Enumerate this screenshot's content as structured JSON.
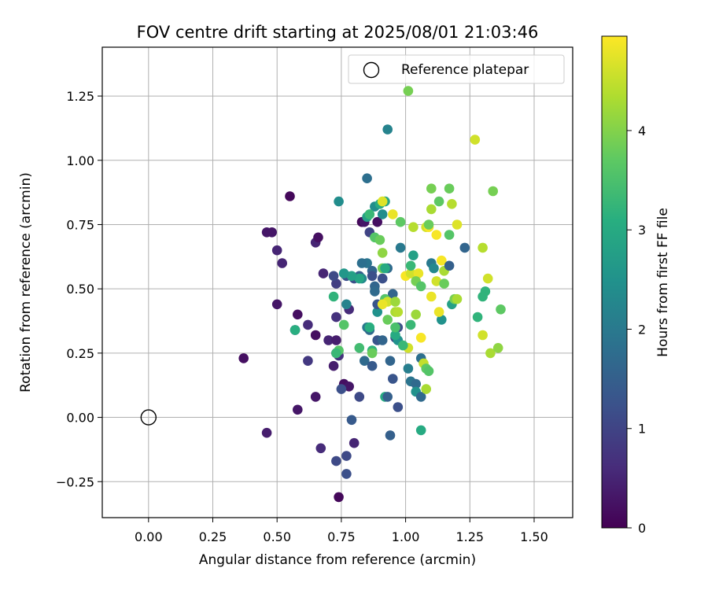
{
  "chart_data": {
    "type": "scatter",
    "title": "FOV centre drift starting at 2025/08/01 21:03:46",
    "xlabel": "Angular distance from reference (arcmin)",
    "ylabel": "Rotation from reference (arcmin)",
    "xlim": [
      -0.18,
      1.65
    ],
    "ylim": [
      -0.39,
      1.44
    ],
    "xticks": [
      0.0,
      0.25,
      0.5,
      0.75,
      1.0,
      1.25,
      1.5
    ],
    "xtick_labels": [
      "0.00",
      "0.25",
      "0.50",
      "0.75",
      "1.00",
      "1.25",
      "1.50"
    ],
    "yticks": [
      -0.25,
      0.0,
      0.25,
      0.5,
      0.75,
      1.0,
      1.25
    ],
    "ytick_labels": [
      "−0.25",
      "0.00",
      "0.25",
      "0.50",
      "0.75",
      "1.00",
      "1.25"
    ],
    "grid": true,
    "legend": {
      "placement": "top-right",
      "entries": [
        "Reference platepar"
      ]
    },
    "colormap": "viridis",
    "colorbar": {
      "label": "Hours from first FF file",
      "range": [
        0,
        4.95
      ],
      "ticks": [
        0,
        1,
        2,
        3,
        4
      ],
      "tick_labels": [
        "0",
        "1",
        "2",
        "3",
        "4"
      ]
    },
    "reference_point": {
      "x": 0.0,
      "y": 0.0
    },
    "points": [
      [
        0.55,
        0.86,
        0.1
      ],
      [
        0.46,
        0.72,
        0.3
      ],
      [
        0.48,
        0.72,
        0.3
      ],
      [
        0.65,
        0.68,
        0.5
      ],
      [
        0.66,
        0.7,
        0.2
      ],
      [
        0.5,
        0.65,
        0.5
      ],
      [
        0.52,
        0.6,
        0.5
      ],
      [
        0.37,
        0.23,
        0.2
      ],
      [
        0.46,
        -0.06,
        0.4
      ],
      [
        0.5,
        0.44,
        0.3
      ],
      [
        0.57,
        0.34,
        0.7
      ],
      [
        0.58,
        0.4,
        0.2
      ],
      [
        0.62,
        0.36,
        0.6
      ],
      [
        0.65,
        0.32,
        0.2
      ],
      [
        0.58,
        0.03,
        0.3
      ],
      [
        0.65,
        0.08,
        0.3
      ],
      [
        0.62,
        0.22,
        0.8
      ],
      [
        0.67,
        -0.12,
        0.6
      ],
      [
        0.68,
        0.56,
        0.5
      ],
      [
        0.7,
        0.3,
        0.5
      ],
      [
        0.73,
        0.3,
        0.4
      ],
      [
        0.73,
        0.25,
        0.6
      ],
      [
        0.74,
        0.24,
        0.7
      ],
      [
        0.72,
        0.2,
        0.4
      ],
      [
        0.76,
        0.13,
        0.2
      ],
      [
        0.78,
        0.12,
        0.3
      ],
      [
        0.75,
        0.11,
        1.2
      ],
      [
        0.82,
        0.08,
        1.1
      ],
      [
        0.73,
        -0.17,
        1.1
      ],
      [
        0.77,
        -0.15,
        1.1
      ],
      [
        0.77,
        -0.22,
        1.2
      ],
      [
        0.74,
        -0.31,
        0.1
      ],
      [
        0.79,
        -0.01,
        1.4
      ],
      [
        0.8,
        -0.1,
        0.5
      ],
      [
        0.78,
        0.42,
        0.6
      ],
      [
        0.73,
        0.39,
        0.7
      ],
      [
        0.73,
        0.52,
        0.9
      ],
      [
        0.72,
        0.55,
        1.1
      ],
      [
        0.77,
        0.55,
        1.2
      ],
      [
        0.8,
        0.54,
        1.2
      ],
      [
        0.82,
        0.55,
        1.5
      ],
      [
        0.83,
        0.76,
        0.1
      ],
      [
        0.84,
        0.76,
        0.3
      ],
      [
        0.86,
        0.72,
        1.0
      ],
      [
        0.89,
        0.76,
        0.2
      ],
      [
        0.85,
        0.93,
        1.8
      ],
      [
        0.93,
        1.12,
        2.2
      ],
      [
        0.88,
        0.82,
        2.4
      ],
      [
        0.85,
        0.6,
        1.9
      ],
      [
        0.87,
        0.57,
        1.6
      ],
      [
        0.85,
        0.35,
        2.0
      ],
      [
        0.86,
        0.34,
        1.7
      ],
      [
        0.84,
        0.22,
        1.7
      ],
      [
        0.87,
        0.2,
        1.4
      ],
      [
        0.89,
        0.3,
        1.3
      ],
      [
        0.91,
        0.3,
        1.6
      ],
      [
        0.92,
        0.08,
        3.0
      ],
      [
        0.93,
        0.08,
        1.5
      ],
      [
        0.94,
        -0.07,
        1.5
      ],
      [
        0.95,
        0.15,
        1.3
      ],
      [
        0.97,
        0.04,
        1.2
      ],
      [
        0.94,
        0.22,
        1.6
      ],
      [
        0.96,
        0.31,
        1.1
      ],
      [
        0.97,
        0.35,
        1.2
      ],
      [
        0.92,
        0.46,
        1.4
      ],
      [
        0.95,
        0.48,
        1.6
      ],
      [
        0.93,
        0.58,
        1.7
      ],
      [
        0.91,
        0.54,
        1.2
      ],
      [
        0.88,
        0.51,
        1.6
      ],
      [
        0.87,
        0.55,
        1.2
      ],
      [
        0.88,
        0.49,
        1.7
      ],
      [
        0.89,
        0.41,
        2.5
      ],
      [
        0.89,
        0.44,
        1.3
      ],
      [
        0.83,
        0.6,
        1.8
      ],
      [
        0.83,
        0.54,
        2.3
      ],
      [
        0.82,
        0.54,
        2.9
      ],
      [
        0.79,
        0.55,
        2.8
      ],
      [
        0.76,
        0.56,
        2.6
      ],
      [
        0.74,
        0.84,
        2.4
      ],
      [
        0.77,
        0.44,
        2.2
      ],
      [
        0.76,
        0.36,
        3.6
      ],
      [
        0.72,
        0.47,
        3.2
      ],
      [
        0.74,
        0.26,
        3.6
      ],
      [
        0.73,
        0.25,
        3.3
      ],
      [
        0.57,
        0.34,
        3.1
      ],
      [
        0.82,
        0.27,
        3.4
      ],
      [
        0.86,
        0.35,
        3.1
      ],
      [
        0.87,
        0.26,
        3.2
      ],
      [
        0.87,
        0.25,
        3.8
      ],
      [
        0.88,
        0.7,
        3.6
      ],
      [
        0.9,
        0.69,
        3.8
      ],
      [
        0.91,
        0.64,
        4.1
      ],
      [
        0.91,
        0.58,
        3.9
      ],
      [
        0.92,
        0.58,
        3.0
      ],
      [
        0.92,
        0.46,
        3.6
      ],
      [
        0.93,
        0.45,
        4.6
      ],
      [
        0.91,
        0.44,
        4.8
      ],
      [
        0.93,
        0.38,
        3.8
      ],
      [
        0.96,
        0.41,
        4.3
      ],
      [
        0.96,
        0.45,
        4.2
      ],
      [
        0.97,
        0.3,
        2.5
      ],
      [
        0.96,
        0.32,
        3.0
      ],
      [
        0.96,
        0.35,
        3.5
      ],
      [
        0.97,
        0.41,
        4.4
      ],
      [
        0.85,
        0.78,
        2.8
      ],
      [
        0.86,
        0.79,
        3.3
      ],
      [
        0.9,
        0.83,
        3.0
      ],
      [
        0.91,
        0.79,
        2.4
      ],
      [
        0.92,
        0.84,
        2.9
      ],
      [
        0.91,
        0.84,
        4.7
      ],
      [
        0.95,
        0.79,
        4.8
      ],
      [
        0.98,
        0.76,
        3.7
      ],
      [
        0.98,
        0.66,
        2.0
      ],
      [
        1.01,
        1.27,
        3.9
      ],
      [
        1.0,
        0.55,
        4.9
      ],
      [
        1.02,
        0.56,
        4.6
      ],
      [
        1.02,
        0.59,
        3.3
      ],
      [
        1.03,
        0.63,
        2.8
      ],
      [
        1.03,
        0.74,
        4.4
      ],
      [
        1.05,
        0.56,
        4.8
      ],
      [
        1.04,
        0.53,
        3.9
      ],
      [
        1.06,
        0.51,
        3.6
      ],
      [
        1.08,
        0.74,
        4.6
      ],
      [
        1.09,
        0.74,
        4.9
      ],
      [
        1.09,
        0.75,
        3.8
      ],
      [
        1.1,
        0.89,
        3.9
      ],
      [
        1.1,
        0.81,
        4.3
      ],
      [
        1.12,
        0.71,
        4.9
      ],
      [
        1.1,
        0.6,
        2.0
      ],
      [
        1.11,
        0.58,
        2.3
      ],
      [
        1.12,
        0.53,
        4.6
      ],
      [
        1.13,
        0.84,
        3.7
      ],
      [
        1.14,
        0.61,
        4.9
      ],
      [
        1.15,
        0.57,
        4.3
      ],
      [
        1.15,
        0.52,
        3.8
      ],
      [
        1.17,
        0.89,
        3.8
      ],
      [
        1.18,
        0.83,
        4.4
      ],
      [
        1.17,
        0.71,
        3.6
      ],
      [
        1.17,
        0.59,
        1.5
      ],
      [
        1.2,
        0.75,
        4.7
      ],
      [
        1.23,
        0.66,
        1.6
      ],
      [
        1.18,
        0.44,
        2.8
      ],
      [
        1.19,
        0.46,
        3.9
      ],
      [
        1.2,
        0.46,
        4.3
      ],
      [
        1.14,
        0.38,
        2.5
      ],
      [
        1.13,
        0.41,
        4.8
      ],
      [
        1.1,
        0.47,
        4.8
      ],
      [
        1.06,
        0.31,
        4.9
      ],
      [
        1.04,
        0.4,
        4.2
      ],
      [
        1.01,
        0.27,
        4.6
      ],
      [
        1.01,
        0.19,
        2.1
      ],
      [
        1.02,
        0.14,
        1.9
      ],
      [
        1.04,
        0.13,
        1.7
      ],
      [
        1.04,
        0.1,
        2.5
      ],
      [
        1.06,
        0.08,
        1.7
      ],
      [
        1.06,
        0.23,
        1.8
      ],
      [
        1.07,
        0.21,
        4.5
      ],
      [
        1.08,
        0.19,
        3.7
      ],
      [
        1.09,
        0.18,
        3.6
      ],
      [
        1.08,
        0.11,
        4.3
      ],
      [
        1.06,
        -0.05,
        3.0
      ],
      [
        1.02,
        0.36,
        3.3
      ],
      [
        0.99,
        0.28,
        3.3
      ],
      [
        1.27,
        1.08,
        4.6
      ],
      [
        1.3,
        0.66,
        4.4
      ],
      [
        1.32,
        0.54,
        4.6
      ],
      [
        1.34,
        0.88,
        3.9
      ],
      [
        1.31,
        0.49,
        3.2
      ],
      [
        1.3,
        0.47,
        3.2
      ],
      [
        1.28,
        0.39,
        3.2
      ],
      [
        1.3,
        0.32,
        4.6
      ],
      [
        1.33,
        0.25,
        4.3
      ],
      [
        1.36,
        0.27,
        4.1
      ],
      [
        1.37,
        0.42,
        3.7
      ]
    ]
  }
}
